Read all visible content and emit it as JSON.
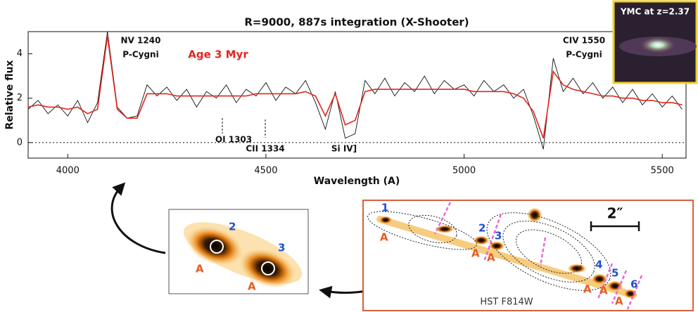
{
  "chart_data": {
    "type": "line",
    "title": "R=9000, 887s integration (X-Shooter)",
    "xlabel": "Wavelength (A)",
    "ylabel": "Relative flux",
    "xlim": [
      3900,
      5560
    ],
    "ylim": [
      -0.7,
      5
    ],
    "xticks": [
      4000,
      4500,
      5000,
      5500
    ],
    "yticks": [
      0,
      2,
      4
    ],
    "annotations": [
      "NV 1240",
      "P-Cygni",
      "Age 3 Myr",
      "CIV 1550",
      "P-Cygni",
      "OI 1303",
      "CII 1334",
      "Si IV]"
    ],
    "x": [
      3900,
      3925,
      3950,
      3975,
      4000,
      4025,
      4050,
      4075,
      4100,
      4125,
      4150,
      4175,
      4200,
      4225,
      4250,
      4275,
      4300,
      4325,
      4350,
      4375,
      4400,
      4425,
      4450,
      4475,
      4500,
      4525,
      4550,
      4575,
      4600,
      4625,
      4650,
      4675,
      4700,
      4725,
      4750,
      4775,
      4800,
      4825,
      4850,
      4875,
      4900,
      4925,
      4950,
      4975,
      5000,
      5025,
      5050,
      5075,
      5100,
      5125,
      5150,
      5175,
      5200,
      5225,
      5250,
      5275,
      5300,
      5325,
      5350,
      5375,
      5400,
      5425,
      5450,
      5475,
      5500,
      5525,
      5550
    ],
    "series": [
      {
        "color": "#111111",
        "values": [
          1.5,
          1.9,
          1.3,
          1.7,
          1.2,
          1.9,
          0.9,
          1.8,
          5.0,
          1.6,
          1.1,
          1.2,
          2.6,
          2.1,
          2.5,
          1.9,
          2.4,
          1.6,
          2.3,
          2.0,
          2.6,
          1.8,
          2.4,
          2.1,
          2.7,
          1.9,
          2.5,
          2.2,
          2.8,
          1.8,
          0.6,
          2.3,
          0.2,
          0.4,
          2.8,
          2.2,
          2.9,
          2.1,
          2.7,
          2.3,
          3.0,
          2.2,
          2.8,
          2.4,
          2.6,
          2.1,
          2.8,
          2.3,
          2.6,
          2.0,
          2.4,
          1.2,
          -0.3,
          3.8,
          2.3,
          2.9,
          2.2,
          2.7,
          2.0,
          2.5,
          1.8,
          2.4,
          1.7,
          2.2,
          1.6,
          2.1,
          1.5
        ]
      },
      {
        "color": "#e0261f",
        "values": [
          1.6,
          1.7,
          1.6,
          1.6,
          1.5,
          1.6,
          1.3,
          1.5,
          4.8,
          1.5,
          1.1,
          1.1,
          2.2,
          2.2,
          2.2,
          2.1,
          2.1,
          2.1,
          2.1,
          2.1,
          2.1,
          2.1,
          2.1,
          2.2,
          2.2,
          2.2,
          2.2,
          2.2,
          2.3,
          2.1,
          1.2,
          2.2,
          0.8,
          1.0,
          2.3,
          2.4,
          2.4,
          2.4,
          2.4,
          2.4,
          2.4,
          2.4,
          2.4,
          2.4,
          2.4,
          2.3,
          2.3,
          2.3,
          2.3,
          2.2,
          2.0,
          1.4,
          0.2,
          3.2,
          2.6,
          2.4,
          2.3,
          2.2,
          2.1,
          2.1,
          2.0,
          2.0,
          1.9,
          1.9,
          1.8,
          1.8,
          1.7
        ]
      }
    ]
  },
  "panels": {
    "inset": {
      "label": "YMC at z=2.37"
    },
    "zoom": {
      "numbers": [
        "2",
        "3"
      ],
      "letters": [
        "A",
        "A"
      ]
    },
    "hst": {
      "label": "HST F814W",
      "scale": "2″",
      "numbers": [
        "1",
        "2",
        "3",
        "4",
        "5",
        "6"
      ],
      "letters": [
        "A",
        "A",
        "A",
        "A",
        "A",
        "A"
      ]
    }
  }
}
